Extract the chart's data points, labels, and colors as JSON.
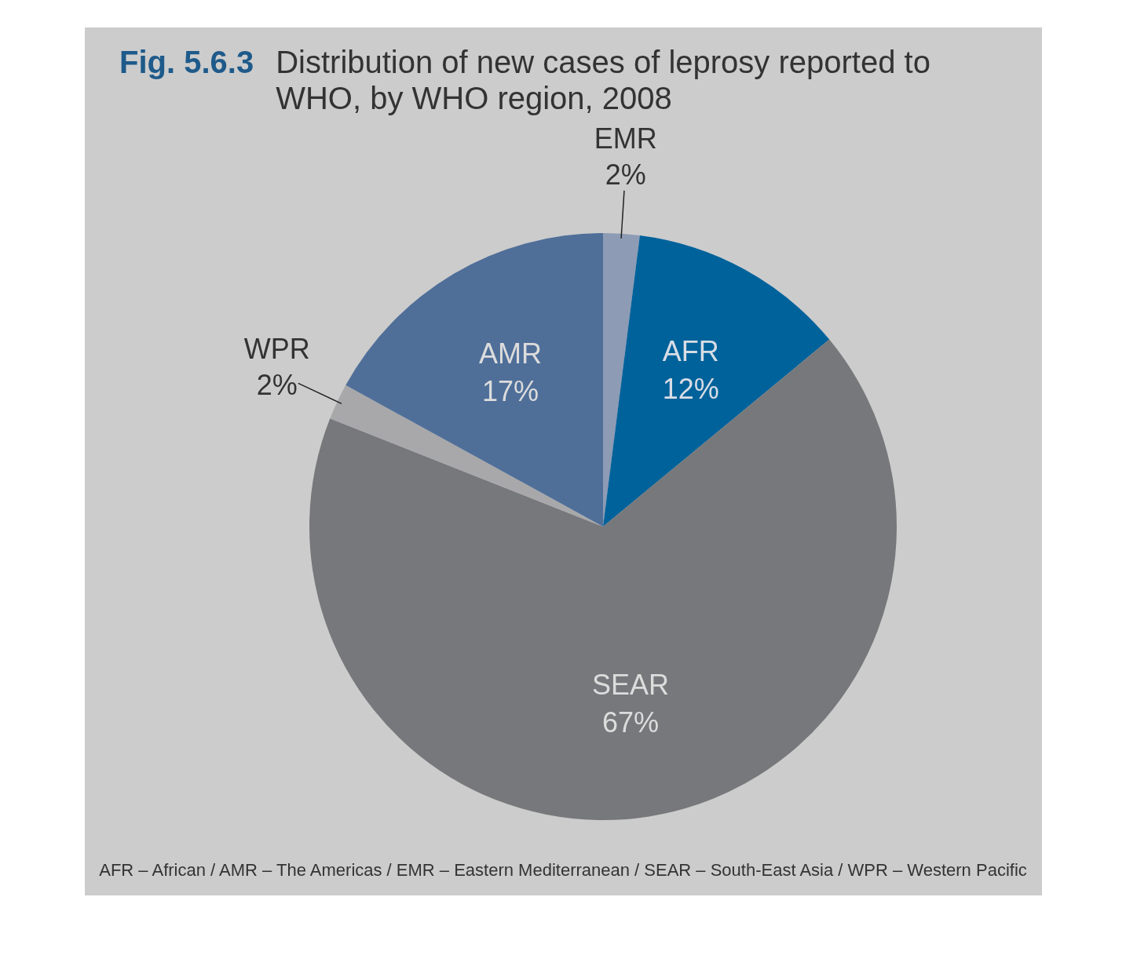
{
  "chart_data": {
    "type": "pie",
    "title": "Distribution of new cases of leprosy reported to WHO, by WHO region, 2008",
    "categories": [
      "EMR",
      "AFR",
      "SEAR",
      "WPR",
      "AMR"
    ],
    "values": [
      2,
      12,
      67,
      2,
      17
    ],
    "colors": [
      "#8d9bb5",
      "#00629b",
      "#77787b",
      "#a8a8aa",
      "#4f6f99"
    ],
    "value_labels": [
      "2%",
      "12%",
      "67%",
      "2%",
      "17%"
    ],
    "annotations": [
      "Fig. 5.6.3",
      "AFR – African / AMR – The Americas / EMR – Eastern Mediterranean / SEAR – South-East Asia / WPR – Western Pacific"
    ]
  }
}
